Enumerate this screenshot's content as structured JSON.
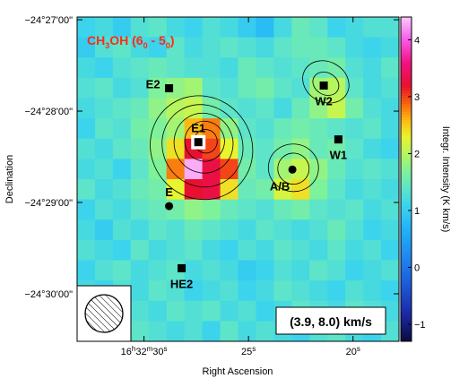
{
  "chart_data": {
    "type": "heatmap",
    "title_parts": {
      "main": "CH",
      "sub1": "3",
      "rest": "OH (6",
      "sub2": "0",
      "mid": " - 5",
      "sub3": "0",
      "end": ")"
    },
    "velocity_box": "(3.9, 8.0) km/s",
    "xlabel": "Right Ascension",
    "ylabel": "Declination",
    "colorbar_label": "Integr. Intensity (K km/s)",
    "x_ticks": [
      {
        "value": 30,
        "parts": {
          "h": "16",
          "hs": "h",
          "m": "32",
          "ms": "m",
          "s": "30",
          "ss": "s"
        }
      },
      {
        "value": 25,
        "parts": {
          "h": "",
          "hs": "",
          "m": "",
          "ms": "",
          "s": "25",
          "ss": "s"
        }
      },
      {
        "value": 20,
        "parts": {
          "h": "",
          "hs": "",
          "m": "",
          "ms": "",
          "s": "20",
          "ss": "s"
        }
      }
    ],
    "y_ticks": [
      {
        "value": 27,
        "label": "−24°27'00\""
      },
      {
        "value": 28,
        "label": "−24°28'00\""
      },
      {
        "value": 29,
        "label": "−24°29'00\""
      },
      {
        "value": 30,
        "label": "−24°30'00\""
      }
    ],
    "colorbar_ticks": [
      "−1",
      "0",
      "1",
      "2",
      "3",
      "4"
    ],
    "colorbar_values": [
      -1,
      0,
      1,
      2,
      3,
      4
    ],
    "colorbar_range": [
      -1.3,
      4.4
    ],
    "x_range_sec": [
      33.2,
      17.8
    ],
    "y_range_arcmin": [
      26.97,
      30.52
    ],
    "color_scale": {
      "stops": [
        [
          -1.3,
          "#0a0a3a"
        ],
        [
          -0.8,
          "#1a2aa8"
        ],
        [
          -0.3,
          "#1d5ad8"
        ],
        [
          0.2,
          "#1e88f0"
        ],
        [
          0.7,
          "#22b4f8"
        ],
        [
          1.1,
          "#3cd4ec"
        ],
        [
          1.4,
          "#5ee4c8"
        ],
        [
          1.7,
          "#7ef29a"
        ],
        [
          2.0,
          "#b6f560"
        ],
        [
          2.3,
          "#e8f42e"
        ],
        [
          2.6,
          "#fcb814"
        ],
        [
          2.9,
          "#f8600c"
        ],
        [
          3.2,
          "#e81030"
        ],
        [
          3.6,
          "#f21080"
        ],
        [
          4.0,
          "#f65ae6"
        ],
        [
          4.4,
          "#fcc8fc"
        ]
      ]
    },
    "grid": {
      "nx": 18,
      "ny": 16,
      "values": [
        [
          1.1,
          1.2,
          1.0,
          1.3,
          1.4,
          1.2,
          1.1,
          1.3,
          1.2,
          1.0,
          0.8,
          1.2,
          1.5,
          1.4,
          1.1,
          1.2,
          1.3,
          1.3
        ],
        [
          1.0,
          1.3,
          1.4,
          1.2,
          1.1,
          1.4,
          1.2,
          1.3,
          1.4,
          1.3,
          1.2,
          1.4,
          1.5,
          1.5,
          1.4,
          1.2,
          1.1,
          1.2
        ],
        [
          1.2,
          1.1,
          1.3,
          1.4,
          1.5,
          1.4,
          1.3,
          1.3,
          1.2,
          1.5,
          1.4,
          1.3,
          1.4,
          1.5,
          1.6,
          1.3,
          1.2,
          1.4
        ],
        [
          1.3,
          1.4,
          1.2,
          1.3,
          1.7,
          1.8,
          1.9,
          1.4,
          1.3,
          1.5,
          1.6,
          1.4,
          1.3,
          1.9,
          2.0,
          1.4,
          1.2,
          1.3
        ],
        [
          1.2,
          1.3,
          1.4,
          1.5,
          1.8,
          2.0,
          2.1,
          1.6,
          1.4,
          1.3,
          1.4,
          1.2,
          1.5,
          1.8,
          2.1,
          1.6,
          1.3,
          1.2
        ],
        [
          1.1,
          1.4,
          1.3,
          1.6,
          1.7,
          1.9,
          2.6,
          2.8,
          1.8,
          1.4,
          1.3,
          1.5,
          1.6,
          1.5,
          1.4,
          1.3,
          1.4,
          1.2
        ],
        [
          1.3,
          1.2,
          1.4,
          1.5,
          1.8,
          2.4,
          3.2,
          3.0,
          2.3,
          1.5,
          1.4,
          1.6,
          1.8,
          1.5,
          1.6,
          1.4,
          1.2,
          1.1
        ],
        [
          1.2,
          1.3,
          1.1,
          1.4,
          1.7,
          2.8,
          4.3,
          3.3,
          3.0,
          1.6,
          1.4,
          1.9,
          2.1,
          1.8,
          1.5,
          1.3,
          1.4,
          1.3
        ],
        [
          1.4,
          1.2,
          1.3,
          1.5,
          1.6,
          2.3,
          3.2,
          3.3,
          2.4,
          1.5,
          1.6,
          2.2,
          2.4,
          1.7,
          1.4,
          1.2,
          1.3,
          1.2
        ],
        [
          1.1,
          1.3,
          1.2,
          1.4,
          1.5,
          1.6,
          1.8,
          1.7,
          1.5,
          1.4,
          1.3,
          1.5,
          1.6,
          1.4,
          1.3,
          1.4,
          1.2,
          1.3
        ],
        [
          1.2,
          1.0,
          1.3,
          1.2,
          1.4,
          1.3,
          1.5,
          1.4,
          1.3,
          1.2,
          1.4,
          1.3,
          1.2,
          1.3,
          1.5,
          1.3,
          1.1,
          1.2
        ],
        [
          1.3,
          1.2,
          1.1,
          1.4,
          1.2,
          1.3,
          1.4,
          1.2,
          1.1,
          1.3,
          1.2,
          1.4,
          1.3,
          1.2,
          1.4,
          1.2,
          1.3,
          1.1
        ],
        [
          1.1,
          1.3,
          1.4,
          1.2,
          1.3,
          1.4,
          1.2,
          1.3,
          1.2,
          1.0,
          1.1,
          1.3,
          1.2,
          1.4,
          1.3,
          1.1,
          1.2,
          1.3
        ],
        [
          1.2,
          1.1,
          1.3,
          1.2,
          1.4,
          1.3,
          1.1,
          1.2,
          1.3,
          1.1,
          1.2,
          1.4,
          1.3,
          1.2,
          1.1,
          1.3,
          1.2,
          1.1
        ],
        [
          1.3,
          1.2,
          1.1,
          1.3,
          1.2,
          1.4,
          1.3,
          1.4,
          1.2,
          1.3,
          1.1,
          1.2,
          1.4,
          1.3,
          1.2,
          1.4,
          1.3,
          1.2
        ],
        [
          1.1,
          1.3,
          1.2,
          1.4,
          1.3,
          1.2,
          1.3,
          1.1,
          1.4,
          1.2,
          1.3,
          1.2,
          1.1,
          1.3,
          1.4,
          1.2,
          1.1,
          1.3
        ]
      ]
    },
    "sources": [
      {
        "label": "E2",
        "ra_sec": 28.8,
        "dec_arcmin": 27.75,
        "marker": "square",
        "label_side": "left"
      },
      {
        "label": "E1",
        "ra_sec": 27.4,
        "dec_arcmin": 28.34,
        "marker": "square-white",
        "label_side": "top"
      },
      {
        "label": "E",
        "ra_sec": 28.8,
        "dec_arcmin": 29.04,
        "marker": "circle",
        "label_side": "top"
      },
      {
        "label": "HE2",
        "ra_sec": 28.2,
        "dec_arcmin": 29.72,
        "marker": "square",
        "label_side": "bottom"
      },
      {
        "label": "W2",
        "ra_sec": 21.4,
        "dec_arcmin": 27.72,
        "marker": "square",
        "label_side": "bottom"
      },
      {
        "label": "W1",
        "ra_sec": 20.7,
        "dec_arcmin": 28.31,
        "marker": "square",
        "label_side": "bottom"
      },
      {
        "label": "A/B",
        "ra_sec": 22.9,
        "dec_arcmin": 28.64,
        "marker": "circle",
        "label_side": "bottom-left"
      }
    ],
    "contours": [
      {
        "ra_sec": 27.25,
        "dec_arcmin": 28.4,
        "rx_sec": 2.4,
        "ry_arcmin": 0.58,
        "rot": -38
      },
      {
        "ra_sec": 27.2,
        "dec_arcmin": 28.38,
        "rx_sec": 1.9,
        "ry_arcmin": 0.46,
        "rot": -35
      },
      {
        "ra_sec": 27.15,
        "dec_arcmin": 28.35,
        "rx_sec": 1.4,
        "ry_arcmin": 0.33,
        "rot": -30
      },
      {
        "ra_sec": 27.1,
        "dec_arcmin": 28.33,
        "rx_sec": 0.95,
        "ry_arcmin": 0.22,
        "rot": -25
      },
      {
        "ra_sec": 27.05,
        "dec_arcmin": 28.33,
        "rx_sec": 0.55,
        "ry_arcmin": 0.13,
        "rot": -20
      },
      {
        "ra_sec": 22.85,
        "dec_arcmin": 28.62,
        "rx_sec": 1.2,
        "ry_arcmin": 0.26,
        "rot": 5
      },
      {
        "ra_sec": 22.85,
        "dec_arcmin": 28.63,
        "rx_sec": 0.75,
        "ry_arcmin": 0.17,
        "rot": 5
      },
      {
        "ra_sec": 21.3,
        "dec_arcmin": 27.68,
        "rx_sec": 1.15,
        "ry_arcmin": 0.22,
        "rot": 30
      },
      {
        "ra_sec": 21.3,
        "dec_arcmin": 27.7,
        "rx_sec": 0.65,
        "ry_arcmin": 0.12,
        "rot": 30
      }
    ],
    "beam": {
      "major_arcsec": 24,
      "hatched": true
    }
  }
}
